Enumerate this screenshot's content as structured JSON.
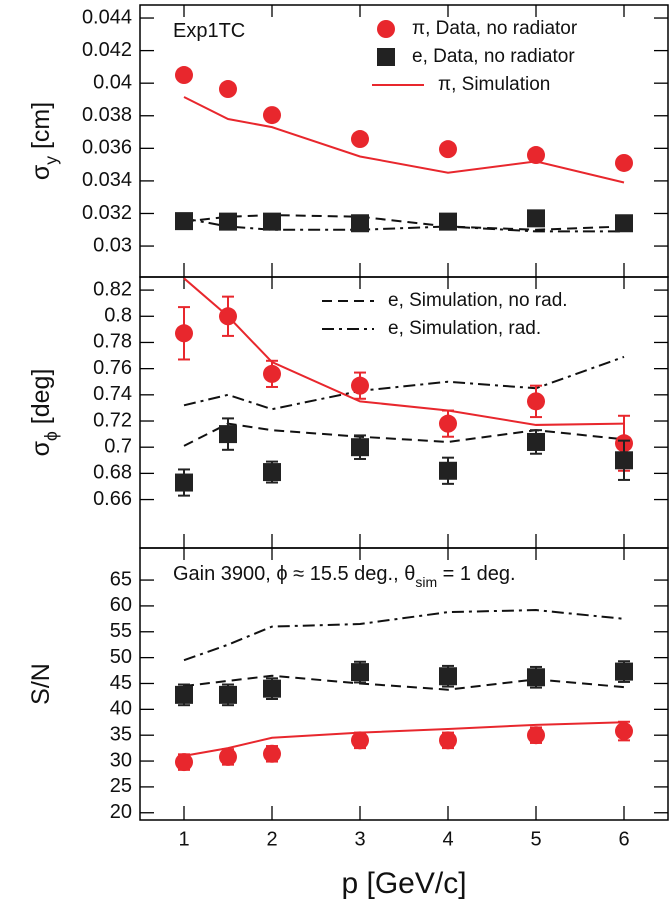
{
  "chart_data": [
    {
      "type": "line",
      "annotation": [
        {
          "text": "Exp1TC"
        }
      ],
      "ylabel": [
        {
          "text": "σ"
        },
        {
          "text": "y",
          "sub": true
        },
        {
          "text": " [cm]"
        }
      ],
      "xlim": [
        0.5,
        6.5
      ],
      "ylim": [
        0.0281,
        0.0448
      ],
      "yticks": [
        0.03,
        0.032,
        0.034,
        0.036,
        0.038,
        0.04,
        0.042,
        0.044
      ],
      "legend": "upper right",
      "x": [
        1,
        1.5,
        2,
        3,
        4,
        5,
        6
      ],
      "series": [
        {
          "name": "π, Data, no radiator",
          "color": "#e8272d",
          "marker": "circle",
          "values": [
            0.0405,
            0.03964,
            0.03804,
            0.03657,
            0.03595,
            0.03559,
            0.0351
          ]
        },
        {
          "name": "e, Data, no radiator",
          "color": "#222222",
          "marker": "square",
          "values": [
            0.03153,
            0.0315,
            0.0315,
            0.0314,
            0.0315,
            0.0317,
            0.0314
          ]
        },
        {
          "name": "π, Simulation",
          "color": "#e8272d",
          "style": "solid",
          "values": [
            0.03915,
            0.0378,
            0.0373,
            0.0355,
            0.0345,
            0.0352,
            0.0339
          ]
        },
        {
          "color": "#111111",
          "style": "dashed",
          "values": [
            0.0315,
            0.0318,
            0.0319,
            0.0318,
            0.0312,
            0.031,
            0.0312
          ]
        },
        {
          "color": "#111111",
          "style": "dashdot",
          "values": [
            0.0317,
            0.0312,
            0.031,
            0.031,
            0.0312,
            0.0309,
            0.0309
          ]
        }
      ]
    },
    {
      "type": "line",
      "ylabel": [
        {
          "text": "σ"
        },
        {
          "text": "ϕ",
          "sub": true
        },
        {
          "text": " [deg]"
        }
      ],
      "xlim": [
        0.5,
        6.5
      ],
      "ylim": [
        0.623,
        0.83
      ],
      "yticks": [
        0.66,
        0.68,
        0.7,
        0.72,
        0.74,
        0.76,
        0.78,
        0.8,
        0.82
      ],
      "legend": "upper right",
      "x": [
        1,
        1.5,
        2,
        3,
        4,
        5,
        6
      ],
      "series": [
        {
          "color": "#e8272d",
          "marker": "circle",
          "values": [
            0.787,
            0.8,
            0.756,
            0.747,
            0.718,
            0.735,
            0.703
          ],
          "errors": [
            0.02,
            0.015,
            0.01,
            0.01,
            0.01,
            0.012,
            0.021
          ]
        },
        {
          "color": "#222222",
          "marker": "square",
          "values": [
            0.673,
            0.71,
            0.681,
            0.7,
            0.682,
            0.704,
            0.69
          ],
          "errors": [
            0.01,
            0.012,
            0.008,
            0.009,
            0.01,
            0.009,
            0.015
          ]
        },
        {
          "color": "#e8272d",
          "style": "solid",
          "values": [
            0.829,
            0.8,
            0.765,
            0.735,
            0.728,
            0.717,
            0.718
          ]
        },
        {
          "name": "e, Simulation, no rad.",
          "color": "#111111",
          "style": "dashed",
          "values": [
            0.701,
            0.718,
            0.713,
            0.708,
            0.704,
            0.713,
            0.706
          ]
        },
        {
          "name": "e, Simulation, rad.",
          "color": "#111111",
          "style": "dashdot",
          "values": [
            0.732,
            0.74,
            0.729,
            0.743,
            0.75,
            0.745,
            0.769
          ]
        }
      ]
    },
    {
      "type": "line",
      "annotation": [
        {
          "text": "Gain 3900,  ϕ ≈ 15.5 deg., θ"
        },
        {
          "text": "sim",
          "sub": true
        },
        {
          "text": " = 1 deg."
        }
      ],
      "ylabel": [
        {
          "text": "S/N"
        }
      ],
      "xlabel": "p [GeV/c]",
      "xlim": [
        0.5,
        6.5
      ],
      "ylim": [
        18.6,
        71.2
      ],
      "xticks": [
        1,
        2,
        3,
        4,
        5,
        6
      ],
      "yticks": [
        20,
        25,
        30,
        35,
        40,
        45,
        50,
        55,
        60,
        65
      ],
      "x": [
        1,
        1.5,
        2,
        3,
        4,
        5,
        6
      ],
      "series": [
        {
          "color": "#e8272d",
          "marker": "circle",
          "values": [
            29.8,
            30.8,
            31.4,
            34,
            34,
            35,
            35.8
          ],
          "errors": [
            1.5,
            1.5,
            1.5,
            1.5,
            1.5,
            1.5,
            1.8
          ]
        },
        {
          "color": "#222222",
          "marker": "square",
          "values": [
            42.8,
            42.8,
            44,
            47.2,
            46.4,
            46.2,
            47.3
          ],
          "errors": [
            2,
            2,
            2,
            2,
            2,
            2,
            2
          ]
        },
        {
          "color": "#e8272d",
          "style": "solid",
          "values": [
            31,
            32.5,
            34.5,
            35.5,
            36.2,
            37,
            37.5
          ]
        },
        {
          "color": "#111111",
          "style": "dashed",
          "values": [
            44.5,
            45.5,
            46.5,
            45,
            43.8,
            45.8,
            44.3
          ]
        },
        {
          "color": "#111111",
          "style": "dashdot",
          "values": [
            49.5,
            52.5,
            56,
            56.5,
            58.8,
            59.2,
            57.5
          ]
        }
      ]
    }
  ]
}
